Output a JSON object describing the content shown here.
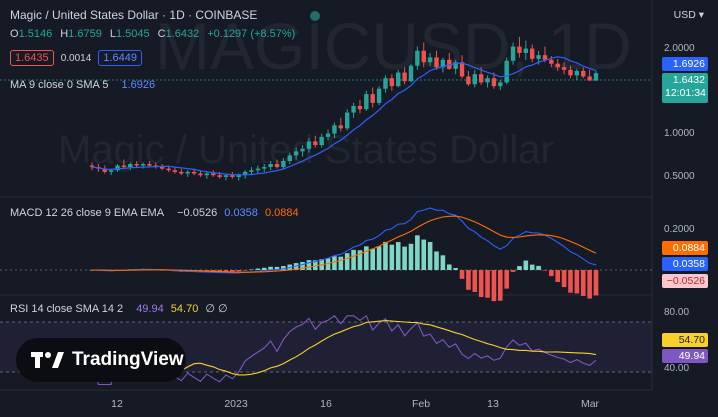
{
  "header": {
    "title": "Magic / United States Dollar · 1D · COINBASE",
    "ohlc": [
      {
        "k": "O",
        "v": "1.5146"
      },
      {
        "k": "H",
        "v": "1.6759"
      },
      {
        "k": "L",
        "v": "1.5045"
      },
      {
        "k": "C",
        "v": "1.6432"
      }
    ],
    "change": "+0.1297 (+8.57%)",
    "sell_price": "1.6435",
    "spread": "0.0014",
    "buy_price": "1.6449",
    "currency": "USD",
    "ma_label": "MA 9 close 0 SMA 5",
    "ma_value": "1.6926"
  },
  "watermark": {
    "symbol": "MAGICUSD, 1D",
    "name": "Magic / United States Dollar"
  },
  "price_axis": {
    "ticks": [
      "2.0000",
      "1.0000",
      "0.5000"
    ],
    "ma_tag": "1.6926",
    "price_tag": "1.6432",
    "countdown": "12:01:34"
  },
  "macd": {
    "label": "MACD 12 26 close 9 EMA EMA",
    "hist": "−0.0526",
    "macd": "0.0358",
    "signal": "0.0884",
    "ticks": [
      "0.2000"
    ],
    "tags": [
      "0.0884",
      "0.0358",
      "−0.0526"
    ]
  },
  "rsi": {
    "label": "RSI 14 close SMA 14 2",
    "rsi": "49.94",
    "sma": "54.70",
    "extra": "∅ ∅",
    "ticks": [
      "80.00",
      "40.00"
    ],
    "tags": [
      "54.70",
      "49.94"
    ]
  },
  "logo_text": "TradingView",
  "x_axis": [
    "12",
    "2023",
    "16",
    "Feb",
    "13",
    "Mar"
  ],
  "colors": {
    "up": "#26a69a",
    "down": "#ef5350",
    "ma": "#2962ff",
    "macd": "#2962ff",
    "signal": "#ff6d00",
    "rsi": "#7e57c2",
    "rsi_sma": "#f7d02c"
  },
  "chart_data": [
    {
      "type": "candlestick",
      "title": "Magic / United States Dollar · 1D · COINBASE",
      "y_scale": "log",
      "x_labels": [
        "12",
        "2023",
        "16",
        "Feb",
        "13",
        "Mar"
      ],
      "ohlc": [
        [
          0.59,
          0.61,
          0.56,
          0.58
        ],
        [
          0.58,
          0.6,
          0.55,
          0.57
        ],
        [
          0.57,
          0.59,
          0.54,
          0.55
        ],
        [
          0.55,
          0.57,
          0.53,
          0.56
        ],
        [
          0.56,
          0.6,
          0.55,
          0.59
        ],
        [
          0.59,
          0.63,
          0.57,
          0.58
        ],
        [
          0.58,
          0.61,
          0.56,
          0.6
        ],
        [
          0.6,
          0.62,
          0.58,
          0.59
        ],
        [
          0.59,
          0.61,
          0.57,
          0.6
        ],
        [
          0.6,
          0.62,
          0.58,
          0.59
        ],
        [
          0.59,
          0.61,
          0.57,
          0.58
        ],
        [
          0.58,
          0.6,
          0.56,
          0.57
        ],
        [
          0.57,
          0.59,
          0.55,
          0.56
        ],
        [
          0.56,
          0.58,
          0.54,
          0.55
        ],
        [
          0.55,
          0.57,
          0.53,
          0.54
        ],
        [
          0.54,
          0.56,
          0.52,
          0.55
        ],
        [
          0.55,
          0.57,
          0.53,
          0.54
        ],
        [
          0.54,
          0.56,
          0.52,
          0.53
        ],
        [
          0.53,
          0.55,
          0.51,
          0.54
        ],
        [
          0.54,
          0.56,
          0.52,
          0.53
        ],
        [
          0.53,
          0.55,
          0.51,
          0.52
        ],
        [
          0.52,
          0.54,
          0.5,
          0.53
        ],
        [
          0.53,
          0.55,
          0.51,
          0.52
        ],
        [
          0.52,
          0.54,
          0.5,
          0.53
        ],
        [
          0.53,
          0.56,
          0.51,
          0.55
        ],
        [
          0.55,
          0.58,
          0.53,
          0.56
        ],
        [
          0.56,
          0.59,
          0.54,
          0.57
        ],
        [
          0.57,
          0.6,
          0.55,
          0.58
        ],
        [
          0.58,
          0.62,
          0.56,
          0.6
        ],
        [
          0.6,
          0.63,
          0.57,
          0.58
        ],
        [
          0.58,
          0.64,
          0.57,
          0.62
        ],
        [
          0.62,
          0.68,
          0.6,
          0.66
        ],
        [
          0.66,
          0.72,
          0.63,
          0.69
        ],
        [
          0.69,
          0.74,
          0.65,
          0.71
        ],
        [
          0.71,
          0.8,
          0.68,
          0.77
        ],
        [
          0.77,
          0.82,
          0.72,
          0.74
        ],
        [
          0.74,
          0.84,
          0.72,
          0.81
        ],
        [
          0.81,
          0.88,
          0.78,
          0.84
        ],
        [
          0.84,
          0.95,
          0.8,
          0.92
        ],
        [
          0.92,
          1.0,
          0.86,
          0.89
        ],
        [
          0.89,
          1.1,
          0.87,
          1.06
        ],
        [
          1.06,
          1.18,
          1.0,
          1.14
        ],
        [
          1.14,
          1.22,
          1.05,
          1.1
        ],
        [
          1.1,
          1.35,
          1.08,
          1.3
        ],
        [
          1.3,
          1.4,
          1.12,
          1.18
        ],
        [
          1.18,
          1.42,
          1.15,
          1.38
        ],
        [
          1.38,
          1.6,
          1.32,
          1.55
        ],
        [
          1.55,
          1.62,
          1.35,
          1.42
        ],
        [
          1.42,
          1.7,
          1.4,
          1.65
        ],
        [
          1.65,
          1.75,
          1.45,
          1.5
        ],
        [
          1.5,
          1.82,
          1.48,
          1.78
        ],
        [
          1.78,
          2.2,
          1.7,
          2.1
        ],
        [
          2.1,
          2.3,
          1.75,
          1.85
        ],
        [
          1.85,
          2.05,
          1.78,
          1.95
        ],
        [
          1.95,
          2.1,
          1.7,
          1.75
        ],
        [
          1.75,
          1.95,
          1.65,
          1.9
        ],
        [
          1.9,
          2.05,
          1.7,
          1.72
        ],
        [
          1.72,
          1.9,
          1.62,
          1.85
        ],
        [
          1.85,
          2.0,
          1.55,
          1.58
        ],
        [
          1.58,
          1.68,
          1.42,
          1.45
        ],
        [
          1.45,
          1.7,
          1.4,
          1.62
        ],
        [
          1.62,
          1.75,
          1.44,
          1.48
        ],
        [
          1.48,
          1.6,
          1.4,
          1.55
        ],
        [
          1.55,
          1.65,
          1.38,
          1.42
        ],
        [
          1.42,
          1.52,
          1.36,
          1.48
        ],
        [
          1.48,
          1.95,
          1.45,
          1.88
        ],
        [
          1.88,
          2.3,
          1.8,
          2.2
        ],
        [
          2.2,
          2.45,
          1.95,
          2.05
        ],
        [
          2.05,
          2.35,
          1.9,
          2.15
        ],
        [
          2.15,
          2.25,
          1.85,
          1.92
        ],
        [
          1.92,
          2.1,
          1.8,
          2.0
        ],
        [
          2.0,
          2.2,
          1.85,
          1.9
        ],
        [
          1.9,
          1.98,
          1.75,
          1.82
        ],
        [
          1.82,
          1.92,
          1.68,
          1.75
        ],
        [
          1.75,
          1.85,
          1.62,
          1.7
        ],
        [
          1.7,
          1.78,
          1.55,
          1.6
        ],
        [
          1.6,
          1.72,
          1.52,
          1.68
        ],
        [
          1.68,
          1.75,
          1.55,
          1.58
        ],
        [
          1.58,
          1.7,
          1.5,
          1.51
        ],
        [
          1.51,
          1.68,
          1.5,
          1.64
        ]
      ],
      "series": [
        {
          "name": "MA 9 close 0 SMA 5",
          "last": 1.6926
        }
      ],
      "last_price": 1.6432
    },
    {
      "type": "line",
      "title": "MACD 12 26 close 9 EMA EMA",
      "series": [
        {
          "name": "MACD",
          "last": 0.0358
        },
        {
          "name": "Signal",
          "last": 0.0884
        },
        {
          "name": "Histogram",
          "last": -0.0526
        }
      ]
    },
    {
      "type": "line",
      "title": "RSI 14 close SMA 14 2",
      "ylim": [
        40,
        80
      ],
      "series": [
        {
          "name": "RSI",
          "last": 49.94
        },
        {
          "name": "SMA",
          "last": 54.7
        }
      ]
    }
  ]
}
